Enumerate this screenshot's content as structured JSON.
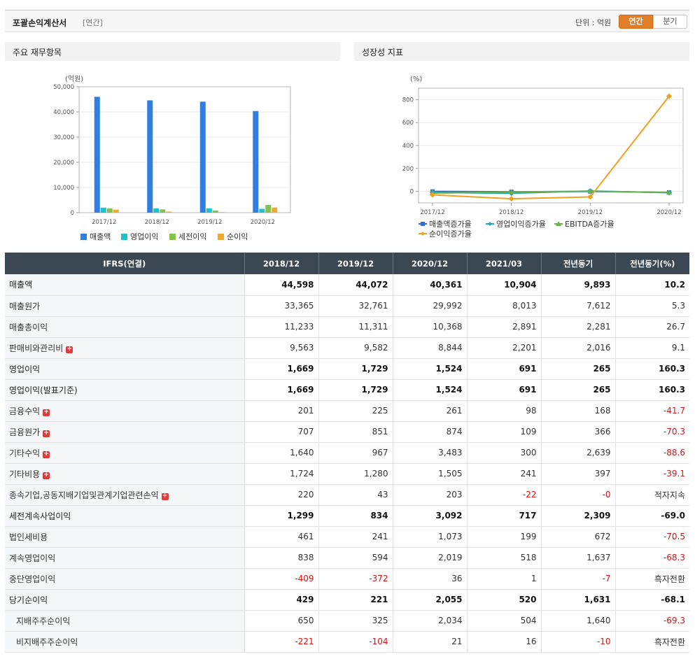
{
  "header": {
    "title": "포괄손익계산서",
    "period": "[연간]",
    "unit_label": "단위 : 억원",
    "tab_annual": "연간",
    "tab_quarter": "분기"
  },
  "left_panel": {
    "title": "주요 재무항목"
  },
  "right_panel": {
    "title": "성장성 지표"
  },
  "chart_data": [
    {
      "type": "bar",
      "ylabel": "(억원)",
      "categories": [
        "2017/12",
        "2018/12",
        "2019/12",
        "2020/12"
      ],
      "ylim": [
        0,
        50000
      ],
      "yticks": [
        "0",
        "10,000",
        "20,000",
        "30,000",
        "40,000",
        "50,000"
      ],
      "yticks_values": [
        0,
        10000,
        20000,
        30000,
        40000,
        50000
      ],
      "series": [
        {
          "name": "매출액",
          "color": "#2f7ee0",
          "values": [
            46000,
            44598,
            44072,
            40361
          ]
        },
        {
          "name": "영업이익",
          "color": "#1fc2c9",
          "values": [
            2000,
            1669,
            1729,
            1524
          ]
        },
        {
          "name": "세전이익",
          "color": "#84c14f",
          "values": [
            1700,
            1299,
            834,
            3092
          ]
        },
        {
          "name": "순이익",
          "color": "#f0a830",
          "values": [
            1200,
            429,
            221,
            2055
          ]
        }
      ],
      "legend": "bottom"
    },
    {
      "type": "line",
      "ylabel": "(%)",
      "categories": [
        "2017/12",
        "2018/12",
        "2019/12",
        "2020/12"
      ],
      "ylim": [
        -100,
        900
      ],
      "yticks": [
        "0",
        "200",
        "400",
        "600",
        "800"
      ],
      "yticks_values": [
        0,
        200,
        400,
        600,
        800
      ],
      "series": [
        {
          "name": "매출액증가율",
          "color": "#2f6fd6",
          "marker": "square",
          "values": [
            0,
            -3.0,
            -1.2,
            -8.4
          ]
        },
        {
          "name": "영업이익증가율",
          "color": "#1aa9b8",
          "marker": "diamond",
          "values": [
            -10,
            -16.5,
            3.6,
            -11.9
          ]
        },
        {
          "name": "EBITDA증가율",
          "color": "#6ab04c",
          "marker": "triangle",
          "values": [
            -15,
            -5,
            2,
            -10
          ]
        },
        {
          "name": "순이익증가율",
          "color": "#f0a020",
          "marker": "diamond",
          "values": [
            -30,
            -64.3,
            -48.5,
            829.9
          ]
        }
      ],
      "legend": "bottom"
    }
  ],
  "table": {
    "columns": [
      "IFRS(연결)",
      "2018/12",
      "2019/12",
      "2020/12",
      "2021/03",
      "전년동기",
      "전년동기(%)"
    ],
    "rows": [
      {
        "label": "매출액",
        "bold": true,
        "plus": false,
        "sub": false,
        "sep": false,
        "values": [
          "44,598",
          "44,072",
          "40,361",
          "10,904",
          "9,893",
          "10.2"
        ]
      },
      {
        "label": "매출원가",
        "bold": false,
        "plus": false,
        "sub": false,
        "sep": false,
        "values": [
          "33,365",
          "32,761",
          "29,992",
          "8,013",
          "7,612",
          "5.3"
        ]
      },
      {
        "label": "매출총이익",
        "bold": false,
        "plus": false,
        "sub": false,
        "sep": false,
        "values": [
          "11,233",
          "11,311",
          "10,368",
          "2,891",
          "2,281",
          "26.7"
        ]
      },
      {
        "label": "판매비와관리비",
        "bold": false,
        "plus": true,
        "sub": false,
        "sep": false,
        "values": [
          "9,563",
          "9,582",
          "8,844",
          "2,201",
          "2,016",
          "9.1"
        ]
      },
      {
        "label": "영업이익",
        "bold": true,
        "plus": false,
        "sub": false,
        "sep": true,
        "values": [
          "1,669",
          "1,729",
          "1,524",
          "691",
          "265",
          "160.3"
        ]
      },
      {
        "label": "영업이익(발표기준)",
        "bold": true,
        "plus": false,
        "sub": false,
        "sep": false,
        "values": [
          "1,669",
          "1,729",
          "1,524",
          "691",
          "265",
          "160.3"
        ]
      },
      {
        "label": "금융수익",
        "bold": false,
        "plus": true,
        "sub": false,
        "sep": true,
        "values": [
          "201",
          "225",
          "261",
          "98",
          "168",
          "-41.7"
        ]
      },
      {
        "label": "금융원가",
        "bold": false,
        "plus": true,
        "sub": false,
        "sep": false,
        "values": [
          "707",
          "851",
          "874",
          "109",
          "366",
          "-70.3"
        ]
      },
      {
        "label": "기타수익",
        "bold": false,
        "plus": true,
        "sub": false,
        "sep": false,
        "values": [
          "1,640",
          "967",
          "3,483",
          "300",
          "2,639",
          "-88.6"
        ]
      },
      {
        "label": "기타비용",
        "bold": false,
        "plus": true,
        "sub": false,
        "sep": false,
        "values": [
          "1,724",
          "1,280",
          "1,505",
          "241",
          "397",
          "-39.1"
        ]
      },
      {
        "label": "종속기업,공동지배기업및관계기업관련손익",
        "bold": false,
        "plus": true,
        "sub": false,
        "sep": false,
        "values": [
          "220",
          "43",
          "203",
          "-22",
          "-0",
          "적자지속"
        ]
      },
      {
        "label": "세전계속사업이익",
        "bold": true,
        "plus": false,
        "sub": false,
        "sep": true,
        "values": [
          "1,299",
          "834",
          "3,092",
          "717",
          "2,309",
          "-69.0"
        ]
      },
      {
        "label": "법인세비용",
        "bold": false,
        "plus": false,
        "sub": false,
        "sep": false,
        "values": [
          "461",
          "241",
          "1,073",
          "199",
          "672",
          "-70.5"
        ]
      },
      {
        "label": "계속영업이익",
        "bold": false,
        "plus": false,
        "sub": false,
        "sep": false,
        "values": [
          "838",
          "594",
          "2,019",
          "518",
          "1,637",
          "-68.3"
        ]
      },
      {
        "label": "중단영업이익",
        "bold": false,
        "plus": false,
        "sub": false,
        "sep": false,
        "values": [
          "-409",
          "-372",
          "36",
          "1",
          "-7",
          "흑자전환"
        ]
      },
      {
        "label": "당기순이익",
        "bold": true,
        "plus": false,
        "sub": false,
        "sep": true,
        "values": [
          "429",
          "221",
          "2,055",
          "520",
          "1,631",
          "-68.1"
        ]
      },
      {
        "label": "지배주주순이익",
        "bold": false,
        "plus": false,
        "sub": true,
        "sep": false,
        "values": [
          "650",
          "325",
          "2,034",
          "504",
          "1,640",
          "-69.3"
        ]
      },
      {
        "label": "비지배주주순이익",
        "bold": false,
        "plus": false,
        "sub": true,
        "sep": false,
        "values": [
          "-221",
          "-104",
          "21",
          "16",
          "-10",
          "흑자전환"
        ]
      }
    ]
  }
}
